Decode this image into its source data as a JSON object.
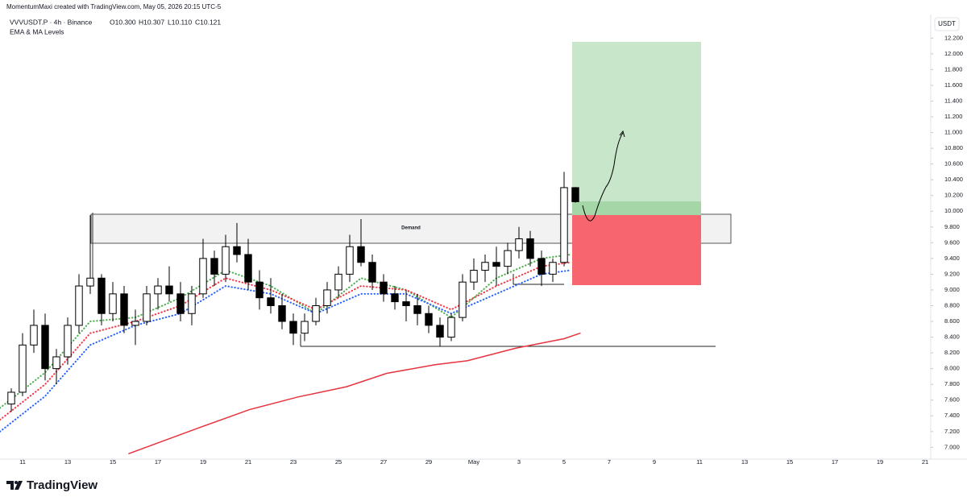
{
  "chart_data": {
    "type": "candlestick",
    "credit": "MomentumMaxi created with TradingView.com, May 05, 2026 20:15 UTC-5",
    "symbol": "VVVUSDT.P · 4h · Binance",
    "ohlc_text": [
      "O10.300",
      "H10.307",
      "L10.110",
      "C10.121"
    ],
    "indicator": "EMA & MA Levels",
    "currency": "USDT",
    "annotations": [
      "Demand"
    ],
    "brand": "TradingView",
    "x": [
      0.5,
      1,
      1.5,
      2,
      2.5,
      3,
      3.5,
      4,
      4.5,
      5,
      5.5,
      6,
      6.5,
      7,
      7.5,
      8,
      8.5,
      9,
      9.5,
      10,
      10.5,
      11,
      11.5,
      12,
      12.5,
      13,
      13.5,
      14,
      14.5,
      15,
      15.5,
      16,
      16.5,
      17,
      17.5,
      18,
      18.5,
      19,
      19.5,
      20,
      20.5,
      21,
      21.5,
      22,
      22.5,
      23,
      23.5,
      24,
      24.5,
      25,
      25.5
    ],
    "open": [
      7.55,
      7.7,
      8.3,
      8.55,
      8.0,
      8.15,
      8.55,
      9.05,
      9.15,
      8.7,
      8.95,
      8.55,
      8.6,
      8.95,
      9.05,
      8.95,
      8.7,
      8.95,
      9.4,
      9.2,
      9.55,
      9.45,
      9.1,
      8.9,
      8.8,
      8.6,
      8.45,
      8.6,
      8.8,
      9.0,
      9.2,
      9.55,
      9.35,
      9.1,
      8.95,
      8.85,
      8.8,
      8.7,
      8.55,
      8.4,
      8.65,
      9.1,
      9.25,
      9.35,
      9.3,
      9.5,
      9.65,
      9.4,
      9.2,
      9.35,
      10.3
    ],
    "high": [
      7.75,
      8.45,
      8.75,
      8.7,
      8.25,
      8.65,
      9.2,
      9.95,
      9.2,
      9.1,
      9.05,
      8.75,
      9.05,
      9.15,
      9.3,
      9.1,
      9.05,
      9.65,
      9.5,
      9.7,
      9.85,
      9.65,
      9.25,
      9.15,
      8.95,
      8.7,
      8.7,
      8.9,
      9.1,
      9.3,
      9.7,
      9.9,
      9.45,
      9.2,
      9.05,
      9.0,
      8.95,
      8.8,
      8.65,
      8.7,
      9.2,
      9.4,
      9.45,
      9.55,
      9.6,
      9.8,
      9.75,
      9.5,
      9.4,
      10.5,
      10.307
    ],
    "low": [
      7.45,
      7.65,
      8.2,
      7.85,
      7.8,
      8.05,
      8.45,
      8.95,
      8.55,
      8.6,
      8.45,
      8.3,
      8.55,
      8.75,
      8.85,
      8.6,
      8.55,
      8.9,
      9.05,
      9.1,
      9.35,
      9.0,
      8.75,
      8.7,
      8.5,
      8.3,
      8.35,
      8.55,
      8.7,
      8.9,
      9.1,
      9.3,
      9.0,
      8.85,
      8.75,
      8.6,
      8.55,
      8.45,
      8.28,
      8.35,
      8.6,
      9.0,
      9.1,
      9.05,
      9.2,
      9.4,
      9.3,
      9.05,
      9.1,
      9.3,
      10.11
    ],
    "close": [
      7.7,
      8.3,
      8.55,
      8.0,
      8.15,
      8.55,
      9.05,
      9.15,
      8.7,
      8.95,
      8.55,
      8.6,
      8.95,
      9.05,
      8.95,
      8.7,
      8.95,
      9.4,
      9.2,
      9.55,
      9.45,
      9.1,
      8.9,
      8.8,
      8.6,
      8.45,
      8.6,
      8.8,
      9.0,
      9.2,
      9.55,
      9.35,
      9.1,
      8.95,
      8.85,
      8.8,
      8.7,
      8.55,
      8.4,
      8.65,
      9.1,
      9.25,
      9.35,
      9.3,
      9.5,
      9.65,
      9.4,
      9.2,
      9.35,
      10.3,
      10.121
    ],
    "up_color": "#ffffff",
    "down_color": "#000000",
    "edge_color": "#000000",
    "lines": [
      {
        "style": "solid",
        "color": "#e5343f",
        "x": [
          5.71,
          8.93,
          11.07,
          13.21,
          15.36,
          17.14,
          19.29,
          20.71,
          22.86,
          25,
          25.71
        ],
        "values": [
          6.92,
          7.26,
          7.48,
          7.64,
          7.77,
          7.94,
          8.05,
          8.1,
          8.26,
          8.38,
          8.45
        ]
      },
      {
        "style": "dotted",
        "color": "#4caf50",
        "x": [
          0,
          2,
          4,
          6,
          8,
          10,
          12,
          14,
          16,
          18,
          20,
          22,
          24,
          25.3
        ],
        "values": [
          7.5,
          7.95,
          8.6,
          8.65,
          8.9,
          9.25,
          9.05,
          8.7,
          9.15,
          9.0,
          8.65,
          9.15,
          9.4,
          9.45
        ]
      },
      {
        "style": "dotted",
        "color": "#f23645",
        "x": [
          0,
          2,
          4,
          6,
          8,
          10,
          12,
          14,
          16,
          18,
          20,
          22,
          24,
          25.3
        ],
        "values": [
          7.35,
          7.8,
          8.45,
          8.6,
          8.8,
          9.15,
          9.0,
          8.75,
          9.05,
          9.0,
          8.75,
          9.05,
          9.3,
          9.35
        ]
      },
      {
        "style": "dotted",
        "color": "#2962ff",
        "x": [
          0,
          2,
          4,
          6,
          8,
          10,
          12,
          14,
          16,
          18,
          20,
          22,
          24,
          25.3
        ],
        "values": [
          7.2,
          7.65,
          8.3,
          8.55,
          8.7,
          9.05,
          8.95,
          8.7,
          8.95,
          8.95,
          8.7,
          8.95,
          9.2,
          9.25
        ]
      }
    ],
    "xlim": [
      0,
      41.25
    ],
    "xticks": [
      {
        "value": 1,
        "label": "11"
      },
      {
        "value": 3,
        "label": "13"
      },
      {
        "value": 5,
        "label": "15"
      },
      {
        "value": 7,
        "label": "17"
      },
      {
        "value": 9,
        "label": "19"
      },
      {
        "value": 11,
        "label": "21"
      },
      {
        "value": 13,
        "label": "23"
      },
      {
        "value": 15,
        "label": "25"
      },
      {
        "value": 17,
        "label": "27"
      },
      {
        "value": 19,
        "label": "29"
      },
      {
        "value": 21,
        "label": "May"
      },
      {
        "value": 23,
        "label": "3"
      },
      {
        "value": 25,
        "label": "5"
      },
      {
        "value": 27,
        "label": "7"
      },
      {
        "value": 29,
        "label": "9"
      },
      {
        "value": 31,
        "label": "11"
      },
      {
        "value": 33,
        "label": "13"
      },
      {
        "value": 35,
        "label": "15"
      },
      {
        "value": 37,
        "label": "17"
      },
      {
        "value": 39,
        "label": "19"
      },
      {
        "value": 41,
        "label": "21"
      }
    ],
    "ylim": [
      6.85,
      12.5
    ],
    "yticks": [
      {
        "value": 7,
        "label": "7.000"
      },
      {
        "value": 7.2,
        "label": "7.200"
      },
      {
        "value": 7.4,
        "label": "7.400"
      },
      {
        "value": 7.6,
        "label": "7.600"
      },
      {
        "value": 7.8,
        "label": "7.800"
      },
      {
        "value": 8,
        "label": "8.000"
      },
      {
        "value": 8.2,
        "label": "8.200"
      },
      {
        "value": 8.4,
        "label": "8.400"
      },
      {
        "value": 8.6,
        "label": "8.600"
      },
      {
        "value": 8.8,
        "label": "8.800"
      },
      {
        "value": 9,
        "label": "9.000"
      },
      {
        "value": 9.2,
        "label": "9.200"
      },
      {
        "value": 9.4,
        "label": "9.400"
      },
      {
        "value": 9.6,
        "label": "9.600"
      },
      {
        "value": 9.8,
        "label": "9.800"
      },
      {
        "value": 10,
        "label": "10.000"
      },
      {
        "value": 10.2,
        "label": "10.200"
      },
      {
        "value": 10.4,
        "label": "10.400"
      },
      {
        "value": 10.6,
        "label": "10.600"
      },
      {
        "value": 10.8,
        "label": "10.800"
      },
      {
        "value": 11,
        "label": "11.000"
      },
      {
        "value": 11.2,
        "label": "11.200"
      },
      {
        "value": 11.4,
        "label": "11.400"
      },
      {
        "value": 11.6,
        "label": "11.600"
      },
      {
        "value": 11.8,
        "label": "11.800"
      },
      {
        "value": 12,
        "label": "12.000"
      },
      {
        "value": 12.2,
        "label": "12.200"
      }
    ]
  }
}
